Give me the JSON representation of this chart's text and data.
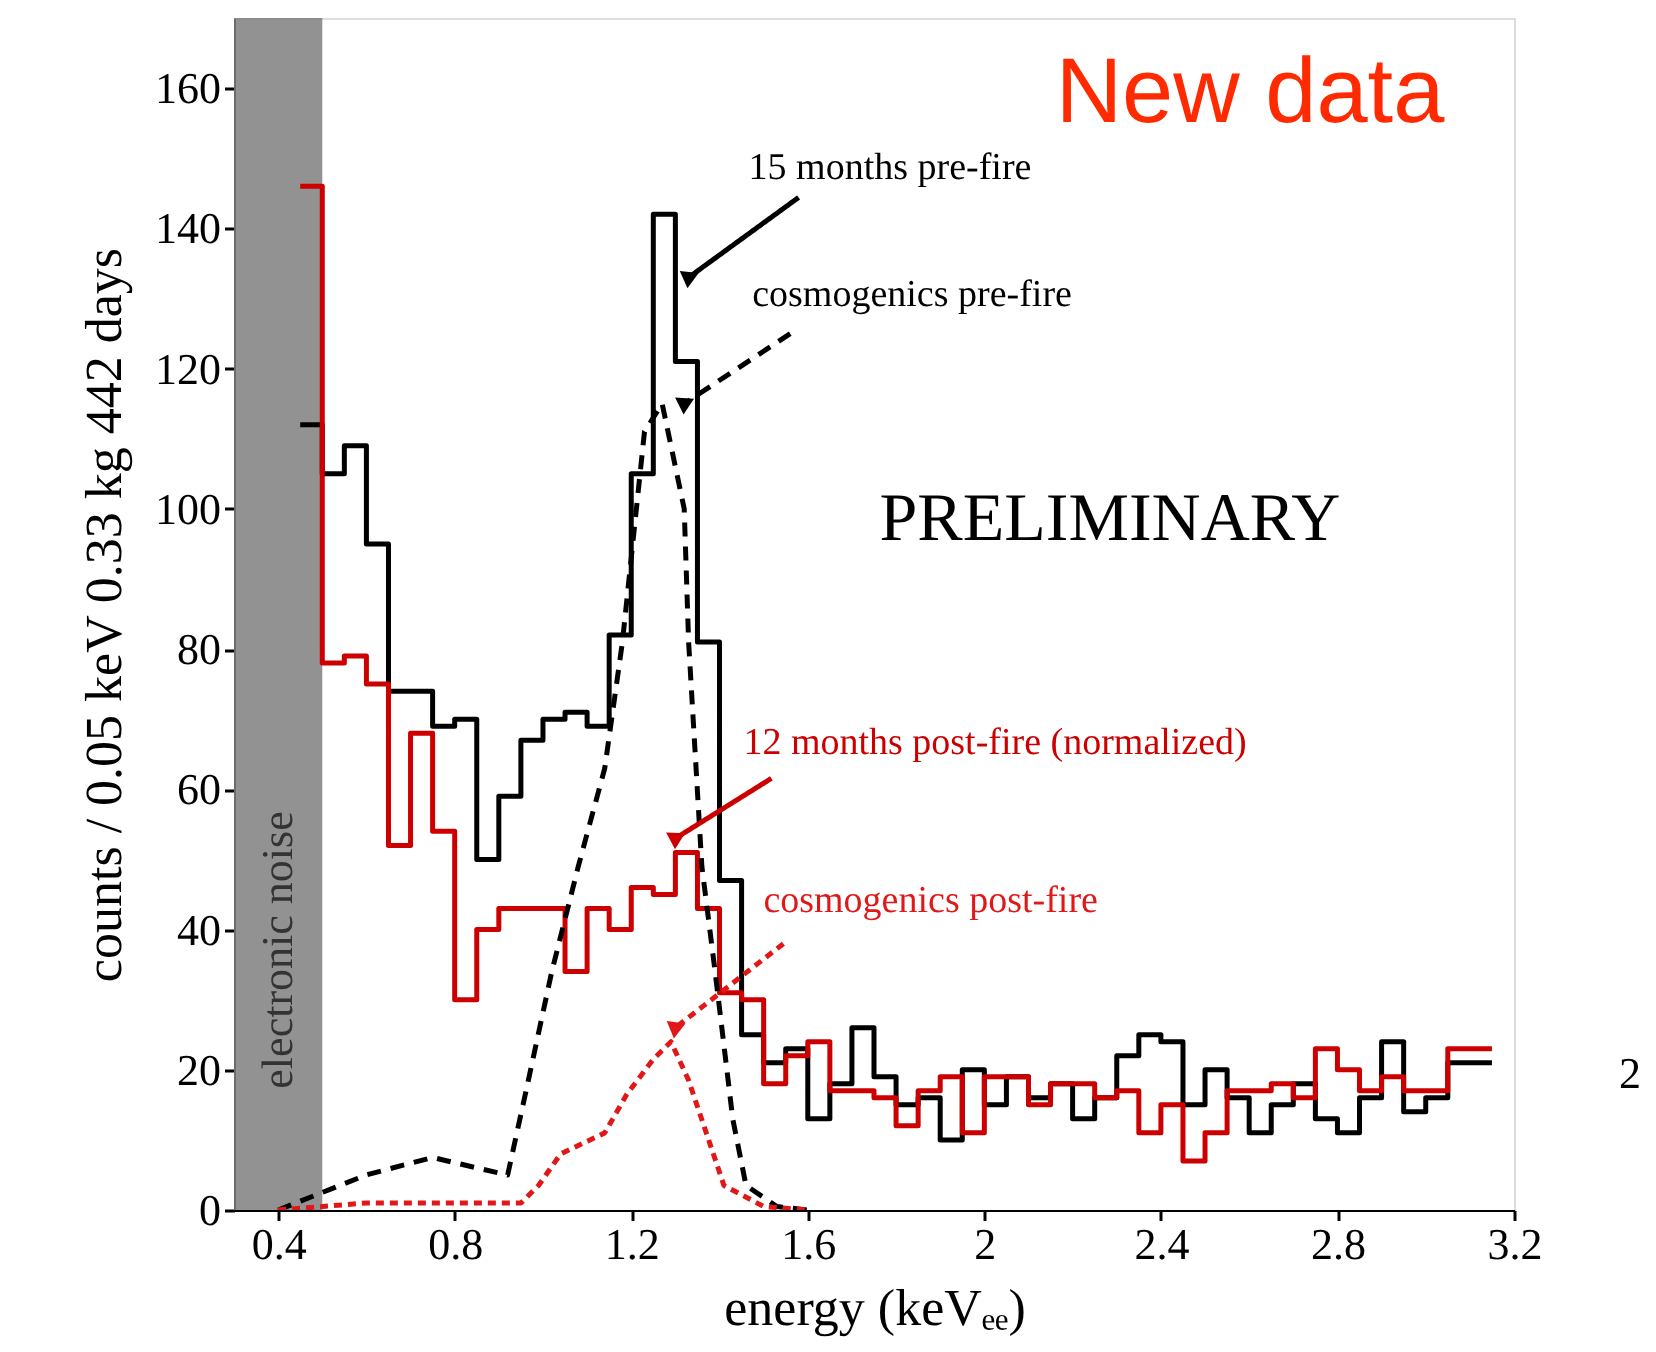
{
  "chart_data": {
    "type": "histogram",
    "xlabel": "energy (keVₑₑ)",
    "ylabel": "counts / 0.05 keV 0.33 kg 442 days",
    "bins": [
      0.45,
      0.5,
      0.55,
      0.6,
      0.65,
      0.7,
      0.75,
      0.8,
      0.85,
      0.9,
      0.95,
      1.0,
      1.05,
      1.1,
      1.15,
      1.2,
      1.25,
      1.3,
      1.35,
      1.4,
      1.45,
      1.5,
      1.55,
      1.6,
      1.65,
      1.7,
      1.75,
      1.8,
      1.85,
      1.9,
      1.95,
      2.0,
      2.05,
      2.1,
      2.15,
      2.2,
      2.25,
      2.3,
      2.35,
      2.4,
      2.45,
      2.5,
      2.55,
      2.6,
      2.65,
      2.7,
      2.75,
      2.8,
      2.85,
      2.9,
      2.95,
      3.0,
      3.05,
      3.1,
      3.15
    ],
    "series": [
      {
        "color": "#000000",
        "values": [
          112,
          105,
          109,
          95,
          74,
          74,
          69,
          70,
          50,
          59,
          67,
          70,
          71,
          69,
          82,
          105,
          142,
          121,
          81,
          47,
          25,
          21,
          23,
          13,
          18,
          26,
          19,
          15,
          16,
          10,
          20,
          15,
          19,
          16,
          18,
          13,
          16,
          22,
          25,
          24,
          15,
          20,
          16,
          11,
          15,
          18,
          13,
          11,
          16,
          24,
          14,
          16,
          21,
          21
        ]
      },
      {
        "color": "#cc0000",
        "values": [
          146,
          78,
          79,
          75,
          52,
          68,
          54,
          30,
          40,
          43,
          43,
          43,
          34,
          43,
          40,
          46,
          45,
          51,
          43,
          31,
          30,
          18,
          22,
          24,
          17,
          17,
          16,
          12,
          17,
          19,
          11,
          19,
          19,
          15,
          18,
          18,
          16,
          17,
          11,
          15,
          7,
          11,
          17,
          17,
          18,
          16,
          23,
          20,
          17,
          19,
          17,
          17,
          23,
          23
        ]
      },
      {
        "type": "line",
        "color": "#000000",
        "line_style": "dashed",
        "x": [
          0.4,
          0.5,
          0.6,
          0.75,
          0.85,
          0.92,
          0.96,
          1.02,
          1.08,
          1.14,
          1.18,
          1.23,
          1.27,
          1.32,
          1.33,
          1.36,
          1.39,
          1.43,
          1.46,
          1.53,
          1.6
        ],
        "values": [
          0,
          2.5,
          5,
          7.5,
          6,
          5,
          16.5,
          34,
          49,
          63,
          81,
          111,
          115,
          100,
          81,
          49,
          34,
          13,
          3.5,
          0.5,
          0
        ]
      },
      {
        "type": "line",
        "color": "#e01818",
        "line_style": "dotted",
        "x": [
          0.4,
          0.6,
          0.8,
          0.95,
          0.99,
          1.04,
          1.14,
          1.19,
          1.25,
          1.29,
          1.33,
          1.37,
          1.41,
          1.5,
          1.6
        ],
        "values": [
          0,
          1,
          1,
          1,
          3.5,
          8,
          11,
          16.5,
          21.5,
          24,
          18.5,
          11,
          3.5,
          0.5,
          0
        ]
      }
    ],
    "xlim": [
      0.3,
      3.2
    ],
    "ylim": [
      0,
      170
    ],
    "xticks": [
      0.4,
      0.8,
      1.2,
      1.6,
      2,
      2.4,
      2.8,
      3.2
    ],
    "yticks": [
      0,
      20,
      40,
      60,
      80,
      100,
      120,
      140,
      160
    ],
    "bands": [
      {
        "axis": "x",
        "from": 0.3,
        "to": 0.5,
        "label": "electronic noise",
        "color": "#7f7f7f"
      }
    ],
    "annotations": [
      {
        "text": "15 months pre-fire",
        "x": 1.33,
        "y": 133
      },
      {
        "text": "cosmogenics pre-fire",
        "x": 1.32,
        "y": 115
      },
      {
        "text": "12 months post-fire (normalized)",
        "x": 1.3,
        "y": 53
      },
      {
        "text": "cosmogenics post-fire",
        "x": 1.3,
        "y": 26
      },
      "PRELIMINARY",
      "New data",
      "2"
    ],
    "grid": false
  }
}
